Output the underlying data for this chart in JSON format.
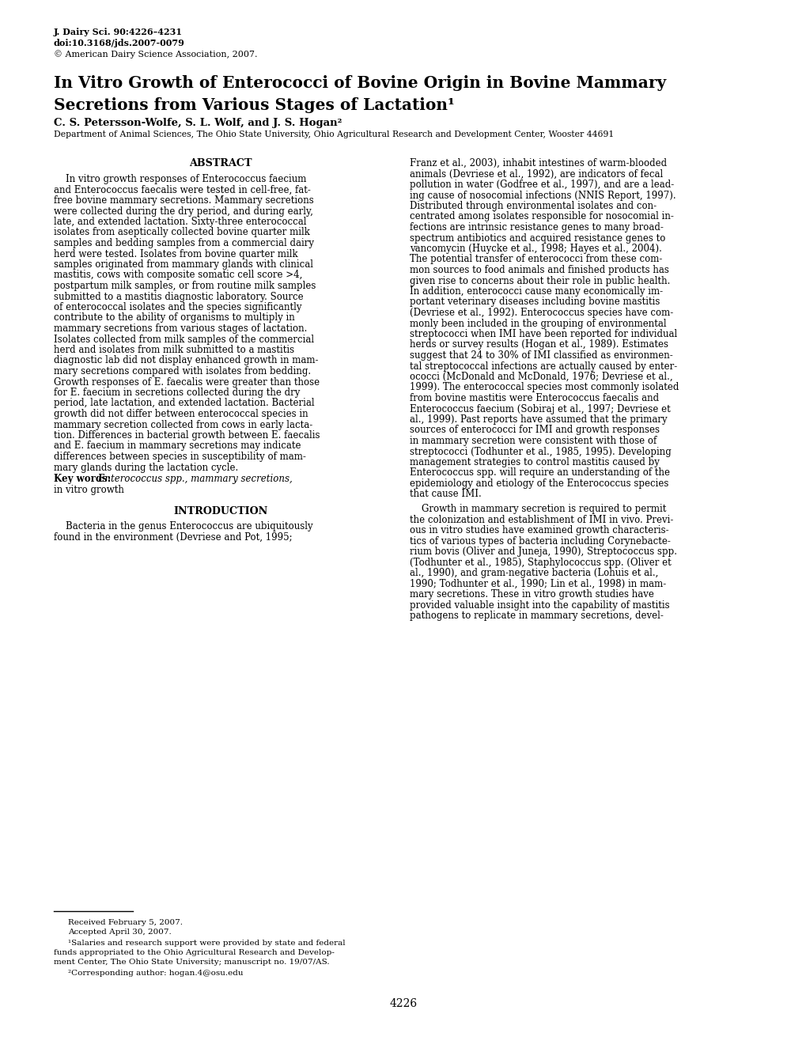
{
  "journal_info_1": "J. Dairy Sci. 90:4226–4231",
  "journal_info_2": "doi:10.3168/jds.2007-0079",
  "journal_info_3": "© American Dairy Science Association, 2007.",
  "title_line1": "In Vitro Growth of Enterococci of Bovine Origin in Bovine Mammary",
  "title_line2": "Secretions from Various Stages of Lactation¹",
  "authors": "C. S. Petersson-Wolfe, S. L. Wolf, and J. S. Hogan²",
  "affiliation": "Department of Animal Sciences, The Ohio State University, Ohio Agricultural Research and Development Center, Wooster 44691",
  "abstract_heading": "ABSTRACT",
  "received": "Received February 5, 2007.",
  "accepted": "Accepted April 30, 2007.",
  "footnote1": "¹Salaries and research support were provided by state and federal",
  "footnote1b": "funds appropriated to the Ohio Agricultural Research and Develop-",
  "footnote1c": "ment Center, The Ohio State University; manuscript no. 19/07/AS.",
  "footnote2": "²Corresponding author: hogan.4@osu.edu",
  "page_number": "4226",
  "left_col_abstract_lines": [
    "    In vitro growth responses of Enterococcus faecium",
    "and Enterococcus faecalis were tested in cell-free, fat-",
    "free bovine mammary secretions. Mammary secretions",
    "were collected during the dry period, and during early,",
    "late, and extended lactation. Sixty-three enterococcal",
    "isolates from aseptically collected bovine quarter milk",
    "samples and bedding samples from a commercial dairy",
    "herd were tested. Isolates from bovine quarter milk",
    "samples originated from mammary glands with clinical",
    "mastitis, cows with composite somatic cell score >4,",
    "postpartum milk samples, or from routine milk samples",
    "submitted to a mastitis diagnostic laboratory. Source",
    "of enterococcal isolates and the species significantly",
    "contribute to the ability of organisms to multiply in",
    "mammary secretions from various stages of lactation.",
    "Isolates collected from milk samples of the commercial",
    "herd and isolates from milk submitted to a mastitis",
    "diagnostic lab did not display enhanced growth in mam-",
    "mary secretions compared with isolates from bedding.",
    "Growth responses of E. faecalis were greater than those",
    "for E. faecium in secretions collected during the dry",
    "period, late lactation, and extended lactation. Bacterial",
    "growth did not differ between enterococcal species in",
    "mammary secretion collected from cows in early lacta-",
    "tion. Differences in bacterial growth between E. faecalis",
    "and E. faecium in mammary secretions may indicate",
    "differences between species in susceptibility of mam-",
    "mary glands during the lactation cycle."
  ],
  "key_words_label": "Key words:",
  "key_words_rest": " Enterococcus spp., mammary secretions,",
  "key_words_line2": "in vitro growth",
  "intro_heading": "INTRODUCTION",
  "intro_lines": [
    "    Bacteria in the genus Enterococcus are ubiquitously",
    "found in the environment (Devriese and Pot, 1995;"
  ],
  "right_col_lines": [
    "Franz et al., 2003), inhabit intestines of warm-blooded",
    "animals (Devriese et al., 1992), are indicators of fecal",
    "pollution in water (Godfree et al., 1997), and are a lead-",
    "ing cause of nosocomial infections (NNIS Report, 1997).",
    "Distributed through environmental isolates and con-",
    "centrated among isolates responsible for nosocomial in-",
    "fections are intrinsic resistance genes to many broad-",
    "spectrum antibiotics and acquired resistance genes to",
    "vancomycin (Huycke et al., 1998; Hayes et al., 2004).",
    "The potential transfer of enterococci from these com-",
    "mon sources to food animals and finished products has",
    "given rise to concerns about their role in public health.",
    "In addition, enterococci cause many economically im-",
    "portant veterinary diseases including bovine mastitis",
    "(Devriese et al., 1992). Enterococcus species have com-",
    "monly been included in the grouping of environmental",
    "streptococci when IMI have been reported for individual",
    "herds or survey results (Hogan et al., 1989). Estimates",
    "suggest that 24 to 30% of IMI classified as environmen-",
    "tal streptococcal infections are actually caused by enter-",
    "ococci (McDonald and McDonald, 1976; Devriese et al.,",
    "1999). The enterococcal species most commonly isolated",
    "from bovine mastitis were Enterococcus faecalis and",
    "Enterococcus faecium (Sobiraj et al., 1997; Devriese et",
    "al., 1999). Past reports have assumed that the primary",
    "sources of enterococci for IMI and growth responses",
    "in mammary secretion were consistent with those of",
    "streptococci (Todhunter et al., 1985, 1995). Developing",
    "management strategies to control mastitis caused by",
    "Enterococcus spp. will require an understanding of the",
    "epidemiology and etiology of the Enterococcus species",
    "that cause IMI.",
    "",
    "    Growth in mammary secretion is required to permit",
    "the colonization and establishment of IMI in vivo. Previ-",
    "ous in vitro studies have examined growth characteris-",
    "tics of various types of bacteria including Corynebacte-",
    "rium bovis (Oliver and Juneja, 1990), Streptococcus spp.",
    "(Todhunter et al., 1985), Staphylococcus spp. (Oliver et",
    "al., 1990), and gram-negative bacteria (Lohuis et al.,",
    "1990; Todhunter et al., 1990; Lin et al., 1998) in mam-",
    "mary secretions. These in vitro growth studies have",
    "provided valuable insight into the capability of mastitis",
    "pathogens to replicate in mammary secretions, devel-"
  ],
  "bg_color": "#ffffff",
  "text_color": "#000000"
}
